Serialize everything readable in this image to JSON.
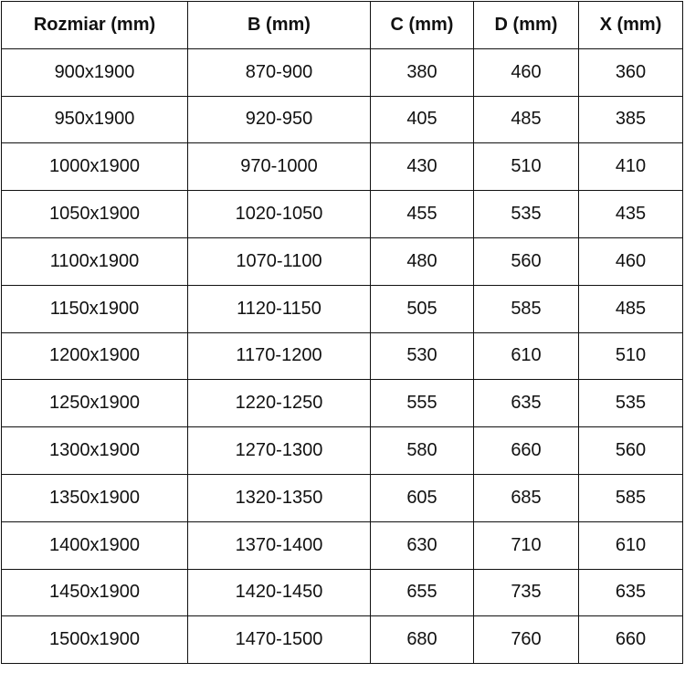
{
  "headers": [
    "Rozmiar (mm)",
    "B (mm)",
    "C (mm)",
    "D (mm)",
    "X (mm)"
  ],
  "rows": [
    [
      "900x1900",
      "870-900",
      "380",
      "460",
      "360"
    ],
    [
      "950x1900",
      "920-950",
      "405",
      "485",
      "385"
    ],
    [
      "1000x1900",
      "970-1000",
      "430",
      "510",
      "410"
    ],
    [
      "1050x1900",
      "1020-1050",
      "455",
      "535",
      "435"
    ],
    [
      "1100x1900",
      "1070-1100",
      "480",
      "560",
      "460"
    ],
    [
      "1150x1900",
      "1120-1150",
      "505",
      "585",
      "485"
    ],
    [
      "1200x1900",
      "1170-1200",
      "530",
      "610",
      "510"
    ],
    [
      "1250x1900",
      "1220-1250",
      "555",
      "635",
      "535"
    ],
    [
      "1300x1900",
      "1270-1300",
      "580",
      "660",
      "560"
    ],
    [
      "1350x1900",
      "1320-1350",
      "605",
      "685",
      "585"
    ],
    [
      "1400x1900",
      "1370-1400",
      "630",
      "710",
      "610"
    ],
    [
      "1450x1900",
      "1420-1450",
      "655",
      "735",
      "635"
    ],
    [
      "1500x1900",
      "1470-1500",
      "680",
      "760",
      "660"
    ]
  ]
}
